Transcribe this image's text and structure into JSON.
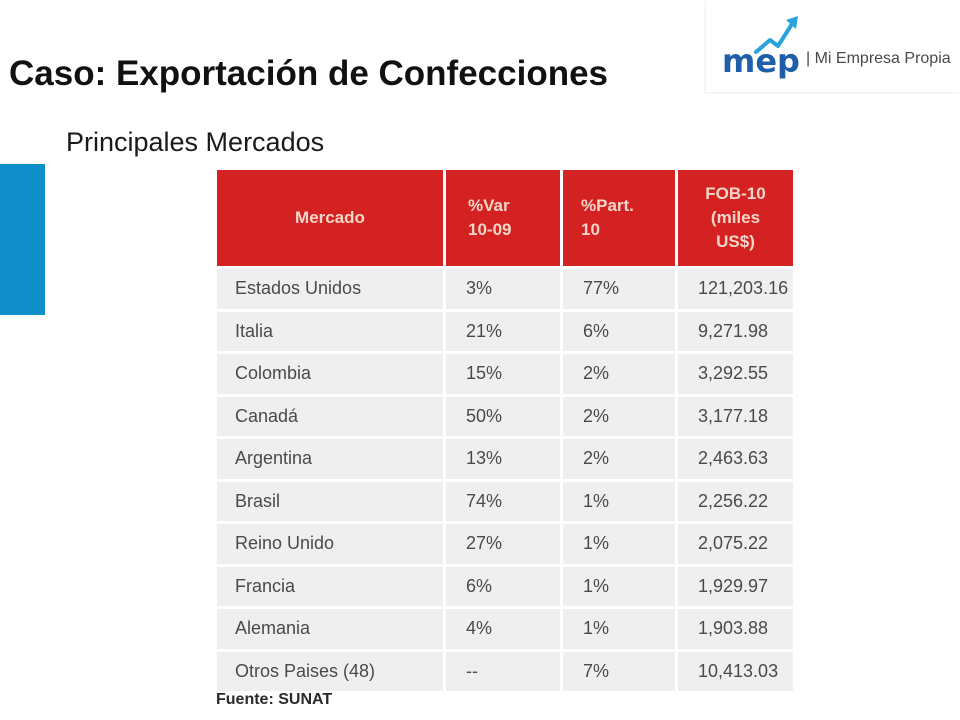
{
  "slide": {
    "title": "Caso: Exportación de Confecciones",
    "subtitle": "Principales Mercados"
  },
  "logo": {
    "mark": "mep",
    "tagline": "| Mi Empresa Propia",
    "icon": "rising-arrow-icon",
    "colors": {
      "mark": "#1f5ea8",
      "arrow": "#27a3dd"
    }
  },
  "colors": {
    "accent_bar": "#0f8ec9",
    "header_bg": "#d42222",
    "header_text": "#f4d6c8",
    "row_bg": "#efefef"
  },
  "table": {
    "headers": [
      [
        "Mercado"
      ],
      [
        "%Var",
        "10-09"
      ],
      [
        "%Part.",
        "10"
      ],
      [
        "FOB-10",
        "(miles",
        "US$)"
      ]
    ],
    "rows": [
      [
        "Estados Unidos",
        "3%",
        "77%",
        "121,203.16"
      ],
      [
        "Italia",
        "21%",
        "6%",
        "9,271.98"
      ],
      [
        "Colombia",
        "15%",
        "2%",
        "3,292.55"
      ],
      [
        "Canadá",
        "50%",
        "2%",
        "3,177.18"
      ],
      [
        "Argentina",
        "13%",
        "2%",
        "2,463.63"
      ],
      [
        "Brasil",
        "74%",
        "1%",
        "2,256.22"
      ],
      [
        "Reino Unido",
        "27%",
        "1%",
        "2,075.22"
      ],
      [
        "Francia",
        "6%",
        "1%",
        "1,929.97"
      ],
      [
        "Alemania",
        "4%",
        "1%",
        "1,903.88"
      ],
      [
        "Otros Paises (48)",
        "--",
        "7%",
        "10,413.03"
      ]
    ],
    "source": "Fuente: SUNAT"
  }
}
